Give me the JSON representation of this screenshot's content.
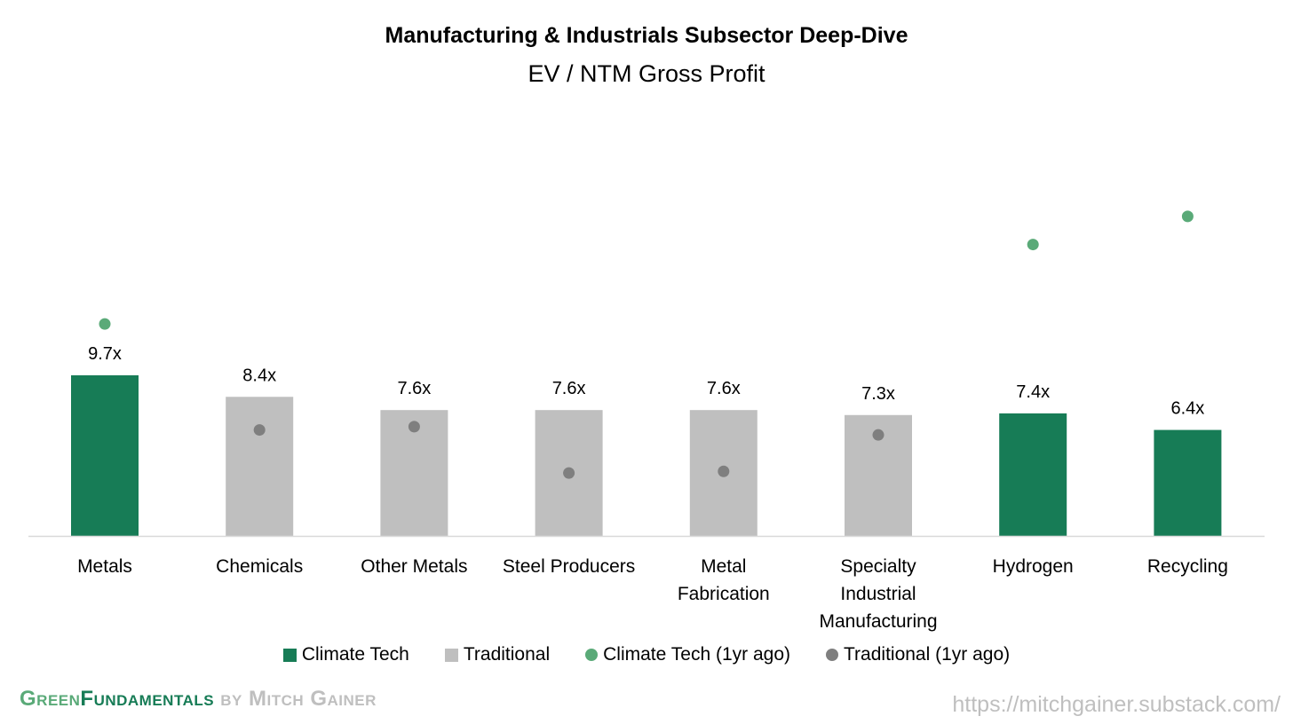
{
  "chart_data": {
    "type": "bar",
    "title": "Manufacturing & Industrials Subsector Deep-Dive",
    "subtitle": "EV / NTM Gross Profit",
    "xlabel": "",
    "ylabel": "",
    "ylim": [
      0,
      25
    ],
    "grid": false,
    "legend_placement": "bottom",
    "categories": [
      [
        "Metals"
      ],
      [
        "Chemicals"
      ],
      [
        "Other Metals"
      ],
      [
        "Steel Producers"
      ],
      [
        "Metal",
        "Fabrication"
      ],
      [
        "Specialty",
        "Industrial",
        "Manufacturing"
      ],
      [
        "Hydrogen"
      ],
      [
        "Recycling"
      ]
    ],
    "series": [
      {
        "name": "Climate Tech / Traditional",
        "type": "bar",
        "values": [
          9.7,
          8.4,
          7.6,
          7.6,
          7.6,
          7.3,
          7.4,
          6.4
        ],
        "labels": [
          "9.7x",
          "8.4x",
          "7.6x",
          "7.6x",
          "7.6x",
          "7.3x",
          "7.4x",
          "6.4x"
        ],
        "group": [
          "Climate Tech",
          "Traditional",
          "Traditional",
          "Traditional",
          "Traditional",
          "Traditional",
          "Climate Tech",
          "Climate Tech"
        ]
      },
      {
        "name": "1yr ago",
        "type": "scatter",
        "values": [
          12.8,
          6.4,
          6.6,
          3.8,
          3.9,
          6.1,
          17.6,
          19.3
        ],
        "group": [
          "Climate Tech (1yr ago)",
          "Traditional (1yr ago)",
          "Traditional (1yr ago)",
          "Traditional (1yr ago)",
          "Traditional (1yr ago)",
          "Traditional (1yr ago)",
          "Climate Tech (1yr ago)",
          "Climate Tech (1yr ago)"
        ]
      }
    ],
    "legend": [
      "Climate Tech",
      "Traditional",
      "Climate Tech (1yr ago)",
      "Traditional (1yr ago)"
    ]
  },
  "colors": {
    "Climate Tech": "#177c56",
    "Traditional": "#bfbfbf",
    "Climate Tech (1yr ago)": "#5aaa78",
    "Traditional (1yr ago)": "#7f7f7f",
    "axis": "#d9d9d9"
  },
  "brand": {
    "green": "Green",
    "fundamentals": "Fundamentals",
    "by": " by Mitch Gainer"
  },
  "url": "https://mitchgainer.substack.com/"
}
